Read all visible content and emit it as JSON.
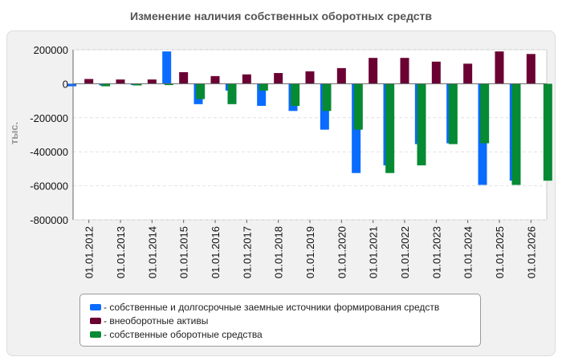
{
  "chart_data": {
    "type": "bar",
    "title": "Изменение наличия собственных оборотных средств",
    "ylabel": "тыс.",
    "xlabel": "",
    "ylim": [
      -800000,
      200000
    ],
    "yticks": [
      200000,
      0,
      -200000,
      -400000,
      -600000,
      -800000
    ],
    "grid": true,
    "legend_position": "bottom",
    "categories": [
      "01.01.2012",
      "01.01.2013",
      "01.01.2014",
      "01.01.2015",
      "01.01.2016",
      "01.01.2017",
      "01.01.2018",
      "01.01.2019",
      "01.01.2020",
      "01.01.2021",
      "01.01.2022",
      "01.01.2023",
      "01.01.2024",
      "01.01.2025",
      "01.01.2026"
    ],
    "series": [
      {
        "name": "- собственные и долгосрочные заемные источники формирования средств",
        "color": "#0a6cff",
        "values": [
          -15000,
          -10000,
          -8000,
          190000,
          -120000,
          -40000,
          -130000,
          -160000,
          -270000,
          -525000,
          -480000,
          -355000,
          -350000,
          -595000,
          -570000
        ]
      },
      {
        "name": "- внеоборотные активы",
        "color": "#6b0033",
        "values": [
          28000,
          25000,
          25000,
          68000,
          45000,
          55000,
          63000,
          73000,
          92000,
          152000,
          152000,
          130000,
          118000,
          190000,
          175000
        ]
      },
      {
        "name": "- собственные оборотные средства",
        "color": "#068a33",
        "values": [
          -15000,
          -10000,
          -8000,
          -90000,
          -120000,
          -40000,
          -130000,
          -160000,
          -270000,
          -525000,
          -480000,
          -355000,
          -350000,
          -595000,
          -570000
        ]
      }
    ]
  }
}
